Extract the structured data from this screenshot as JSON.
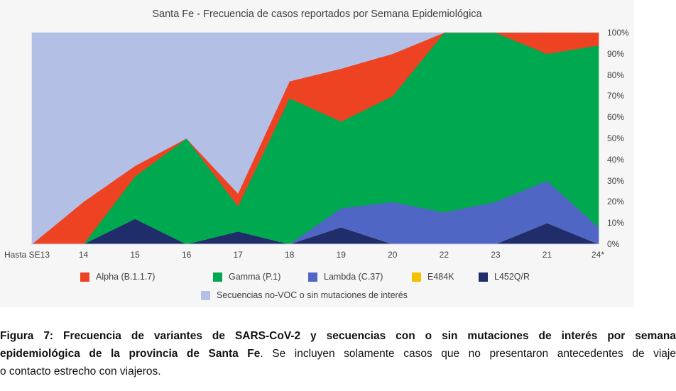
{
  "chart_data": {
    "type": "area",
    "stacked": true,
    "percent": true,
    "title": "Santa Fe - Frecuencia de casos reportados por Semana Epidemiológica",
    "xlabel": "",
    "ylabel": "",
    "ylim": [
      0,
      100
    ],
    "y_ticks": [
      "0%",
      "10%",
      "20%",
      "30%",
      "40%",
      "50%",
      "60%",
      "70%",
      "80%",
      "90%",
      "100%"
    ],
    "y_axis_side": "right",
    "grid": false,
    "legend_position": "bottom",
    "categories": [
      "Hasta SE13",
      "14",
      "15",
      "16",
      "17",
      "18",
      "19",
      "20",
      "22",
      "23",
      "21",
      "24*"
    ],
    "series": [
      {
        "name": "L452Q/R",
        "color": "#1f2d6b",
        "values": [
          0,
          0,
          12,
          0,
          6,
          0,
          8,
          0,
          0,
          0,
          10,
          0
        ]
      },
      {
        "name": "E484K",
        "color": "#f5c000",
        "values": [
          0,
          0,
          0,
          0,
          0,
          0,
          0,
          0,
          0,
          0,
          0,
          0
        ]
      },
      {
        "name": "Lambda (C.37)",
        "color": "#4f66c4",
        "values": [
          0,
          0,
          0,
          0,
          0,
          0,
          9,
          20,
          15,
          20,
          20,
          8
        ]
      },
      {
        "name": "Gamma (P.1)",
        "color": "#00a94f",
        "values": [
          0,
          0,
          20,
          50,
          12,
          69,
          41,
          50,
          85,
          80,
          60,
          86
        ]
      },
      {
        "name": "Alpha (B.1.1.7)",
        "color": "#ee4322",
        "values": [
          0,
          20,
          5,
          0,
          6,
          8,
          25,
          20,
          0,
          0,
          10,
          6
        ]
      },
      {
        "name": "Secuencias no-VOC o sin mutaciones de interés",
        "color": "#b4bfe6",
        "values": [
          100,
          80,
          63,
          50,
          76,
          23,
          17,
          10,
          0,
          0,
          0,
          0
        ]
      }
    ],
    "legend": [
      {
        "label": "Alpha (B.1.1.7)",
        "color": "#ee4322"
      },
      {
        "label": "Gamma (P.1)",
        "color": "#00a94f"
      },
      {
        "label": "Lambda (C.37)",
        "color": "#4f66c4"
      },
      {
        "label": "E484K",
        "color": "#f5c000"
      },
      {
        "label": "L452Q/R",
        "color": "#1f2d6b"
      },
      {
        "label": "Secuencias no-VOC o sin mutaciones de interés",
        "color": "#b4bfe6"
      }
    ]
  },
  "caption": {
    "bold_part": "Figura 7: Frecuencia de variantes de SARS-CoV-2 y secuencias con o sin mutaciones de interés por semana epidemiológica de la provincia de Santa Fe",
    "line1_bold": "Figura 7: Frecuencia de variantes de SARS-CoV-2 y secuencias con o sin mutaciones de interés por semana",
    "line2_bold": "epidemiológica de la provincia de Santa Fe",
    "line2_rest": ". Se incluyen solamente casos que no presentaron antecedentes de viaje",
    "line3": "o contacto estrecho con viajeros."
  }
}
